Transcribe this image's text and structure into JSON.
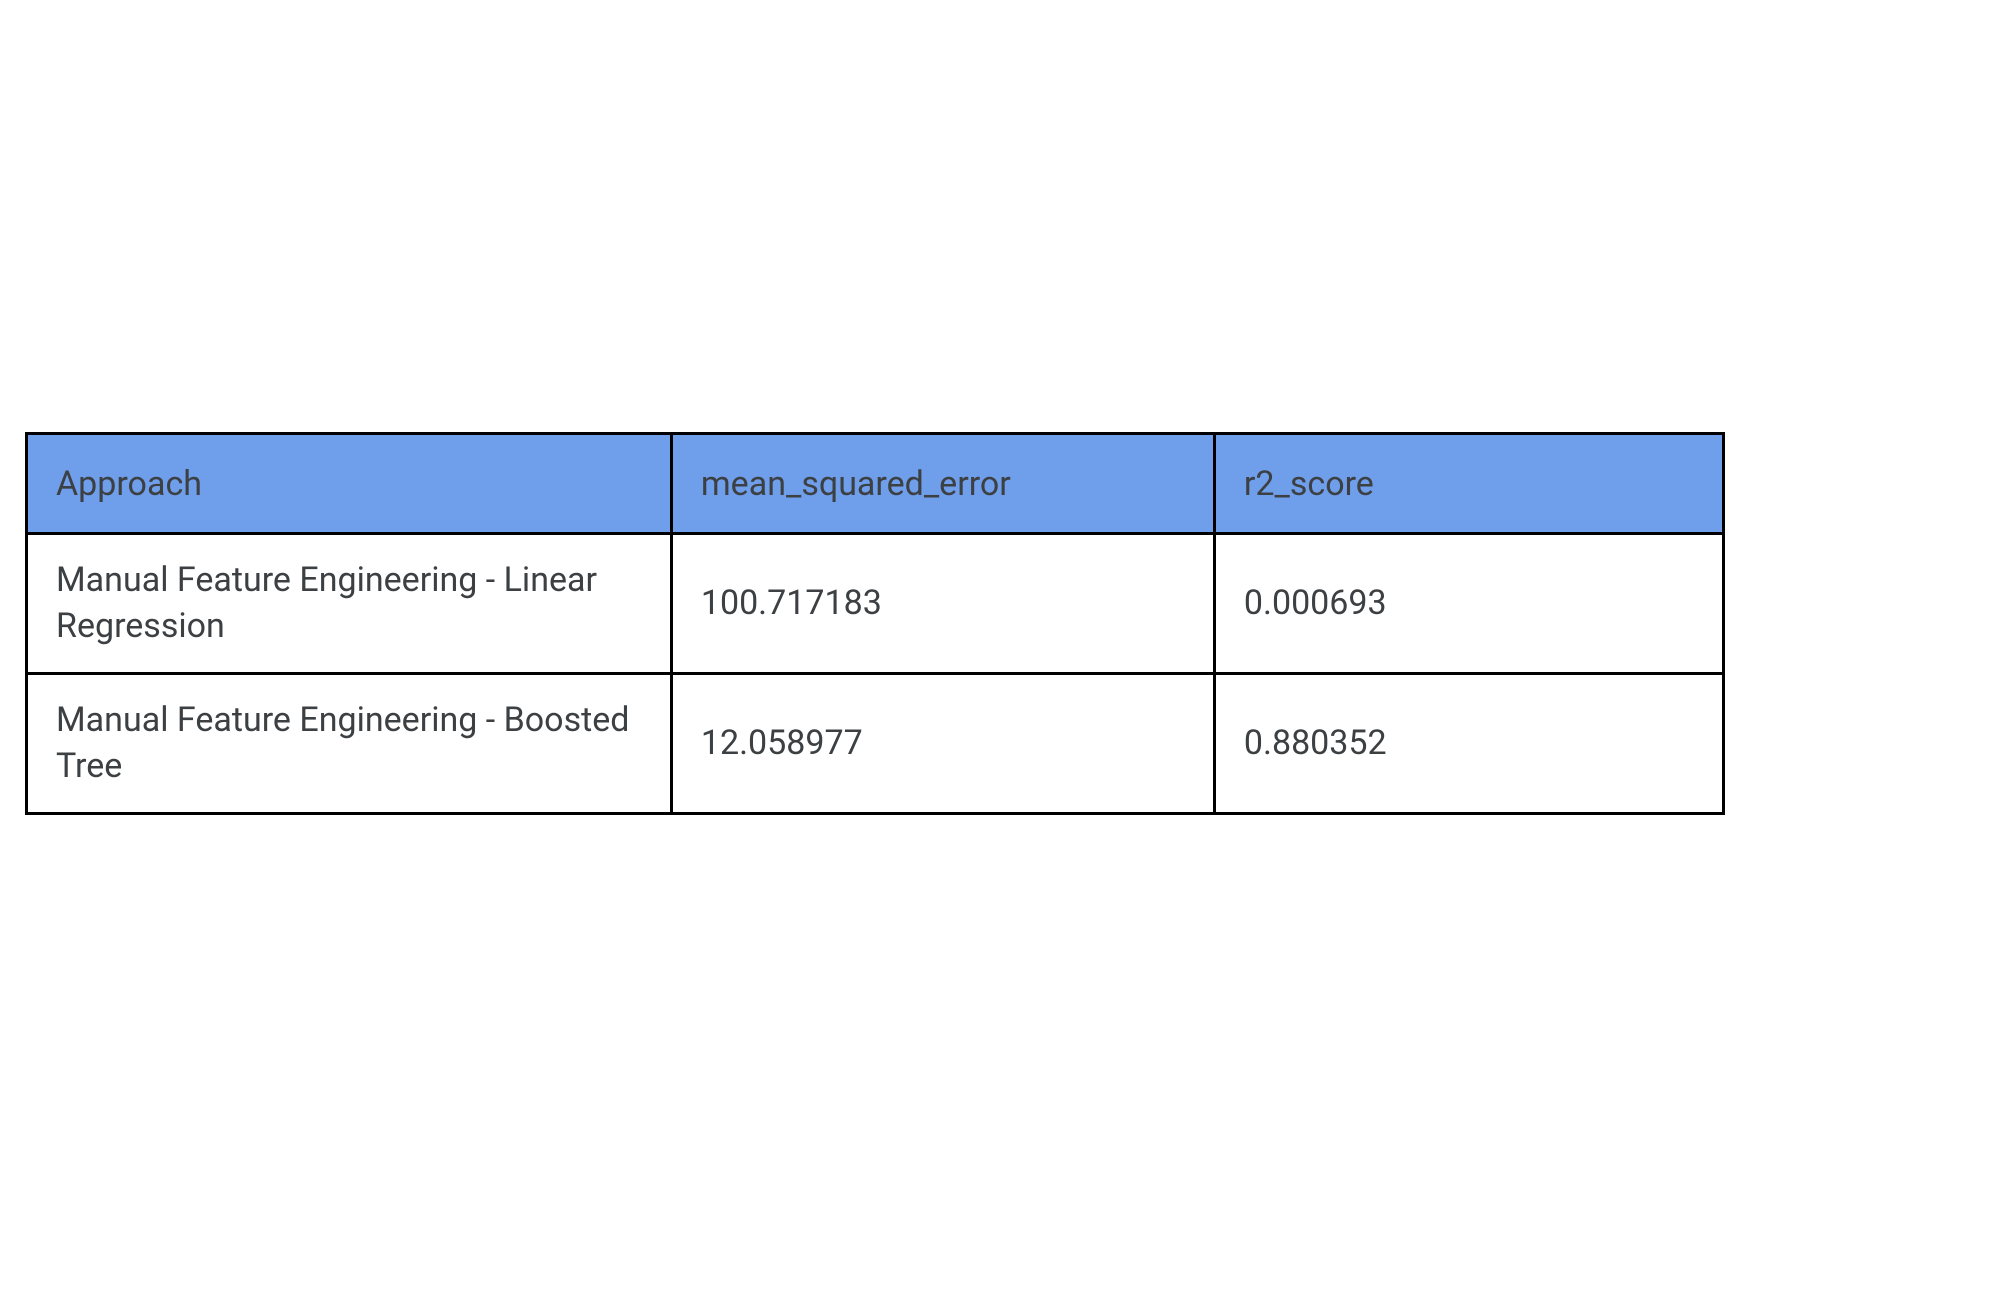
{
  "table": {
    "type": "table",
    "header_bg_color": "#6f9eeb",
    "cell_bg_color": "#ffffff",
    "border_color": "#000000",
    "border_width": 3,
    "text_color": "#3c4043",
    "font_size": 34,
    "columns": [
      {
        "label": "Approach",
        "width_pct": 38
      },
      {
        "label": "mean_squared_error",
        "width_pct": 32
      },
      {
        "label": "r2_score",
        "width_pct": 30
      }
    ],
    "rows": [
      {
        "approach": "Manual Feature Engineering - Linear Regression",
        "mse": "100.717183",
        "r2": "0.000693"
      },
      {
        "approach": "Manual Feature Engineering - Boosted Tree",
        "mse": "12.058977",
        "r2": "0.880352"
      }
    ]
  }
}
